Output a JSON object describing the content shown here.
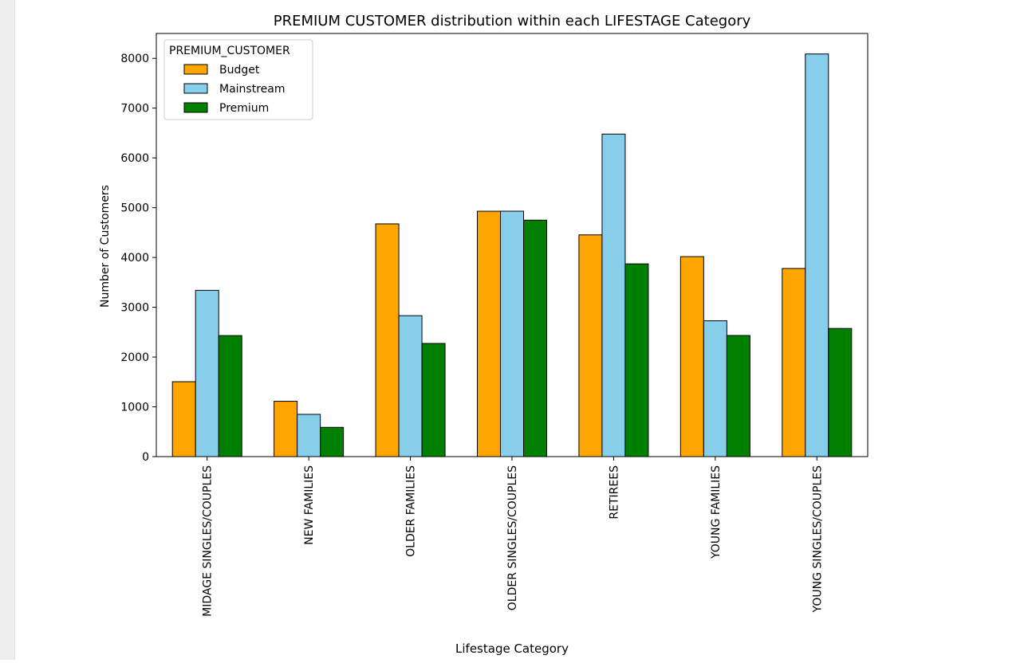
{
  "chart_data": {
    "type": "bar",
    "title": "PREMIUM CUSTOMER distribution within each LIFESTAGE Category",
    "xlabel": "Lifestage Category",
    "ylabel": "Number of Customers",
    "categories": [
      "MIDAGE SINGLES/COUPLES",
      "NEW FAMILIES",
      "OLDER FAMILIES",
      "OLDER SINGLES/COUPLES",
      "RETIREES",
      "YOUNG FAMILIES",
      "YOUNG SINGLES/COUPLES"
    ],
    "series": [
      {
        "name": "Budget",
        "color": "#ffa500",
        "values": [
          1504,
          1112,
          4675,
          4929,
          4454,
          4017,
          3779
        ]
      },
      {
        "name": "Mainstream",
        "color": "#87ceeb",
        "values": [
          3340,
          849,
          2831,
          4930,
          6479,
          2728,
          8088
        ]
      },
      {
        "name": "Premium",
        "color": "#008000",
        "values": [
          2431,
          588,
          2273,
          4750,
          3872,
          2433,
          2574
        ]
      }
    ],
    "ylim": [
      0,
      8500
    ],
    "yticks": [
      0,
      1000,
      2000,
      3000,
      4000,
      5000,
      6000,
      7000,
      8000
    ],
    "legend": {
      "title": "PREMIUM_CUSTOMER",
      "placement": "upper-left"
    },
    "grid": false
  }
}
